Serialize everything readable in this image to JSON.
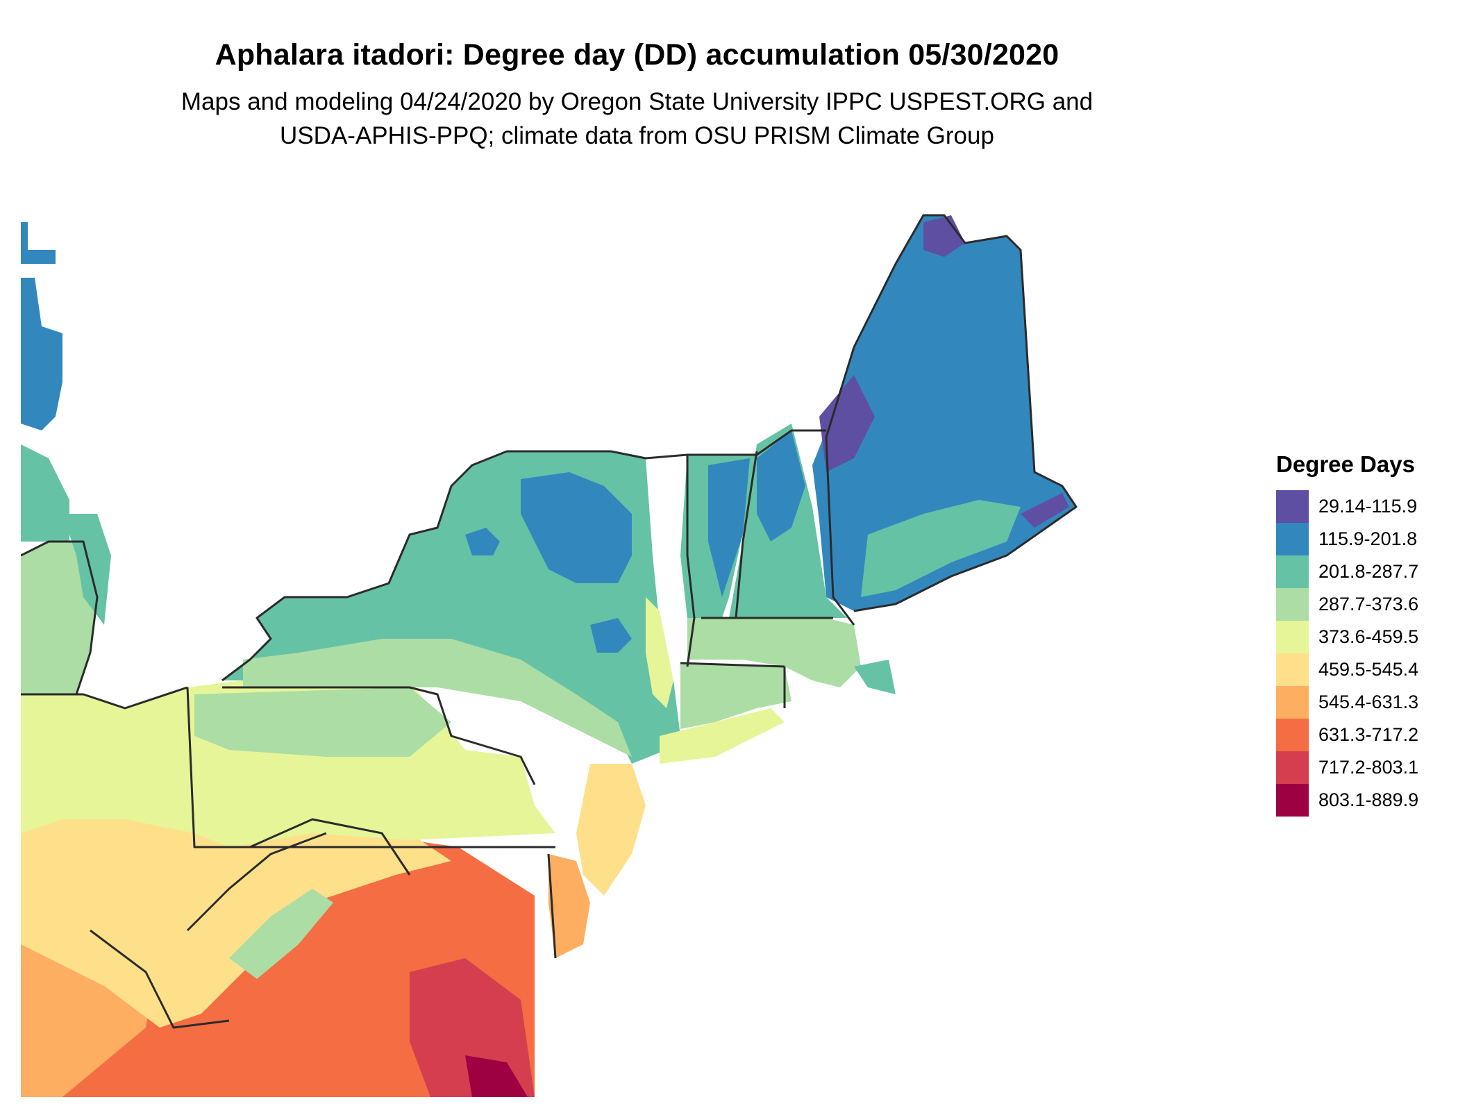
{
  "title": "Aphalara itadori: Degree day (DD) accumulation 05/30/2020",
  "subtitle_line1": "Maps and modeling 04/24/2020 by Oregon State University IPPC USPEST.ORG and",
  "subtitle_line2": "USDA-APHIS-PPQ; climate data from OSU PRISM Climate Group",
  "legend": {
    "title": "Degree Days",
    "items": [
      {
        "label": "29.14-115.9",
        "color": "#5E4FA2"
      },
      {
        "label": "115.9-201.8",
        "color": "#3288BD"
      },
      {
        "label": "201.8-287.7",
        "color": "#66C2A5"
      },
      {
        "label": "287.7-373.6",
        "color": "#ABDDA4"
      },
      {
        "label": "373.6-459.5",
        "color": "#E6F598"
      },
      {
        "label": "459.5-545.4",
        "color": "#FEE08B"
      },
      {
        "label": "545.4-631.3",
        "color": "#FDAE61"
      },
      {
        "label": "631.3-717.2",
        "color": "#F46D43"
      },
      {
        "label": "717.2-803.1",
        "color": "#D53E4F"
      },
      {
        "label": "803.1-889.9",
        "color": "#9E0142"
      }
    ]
  }
}
